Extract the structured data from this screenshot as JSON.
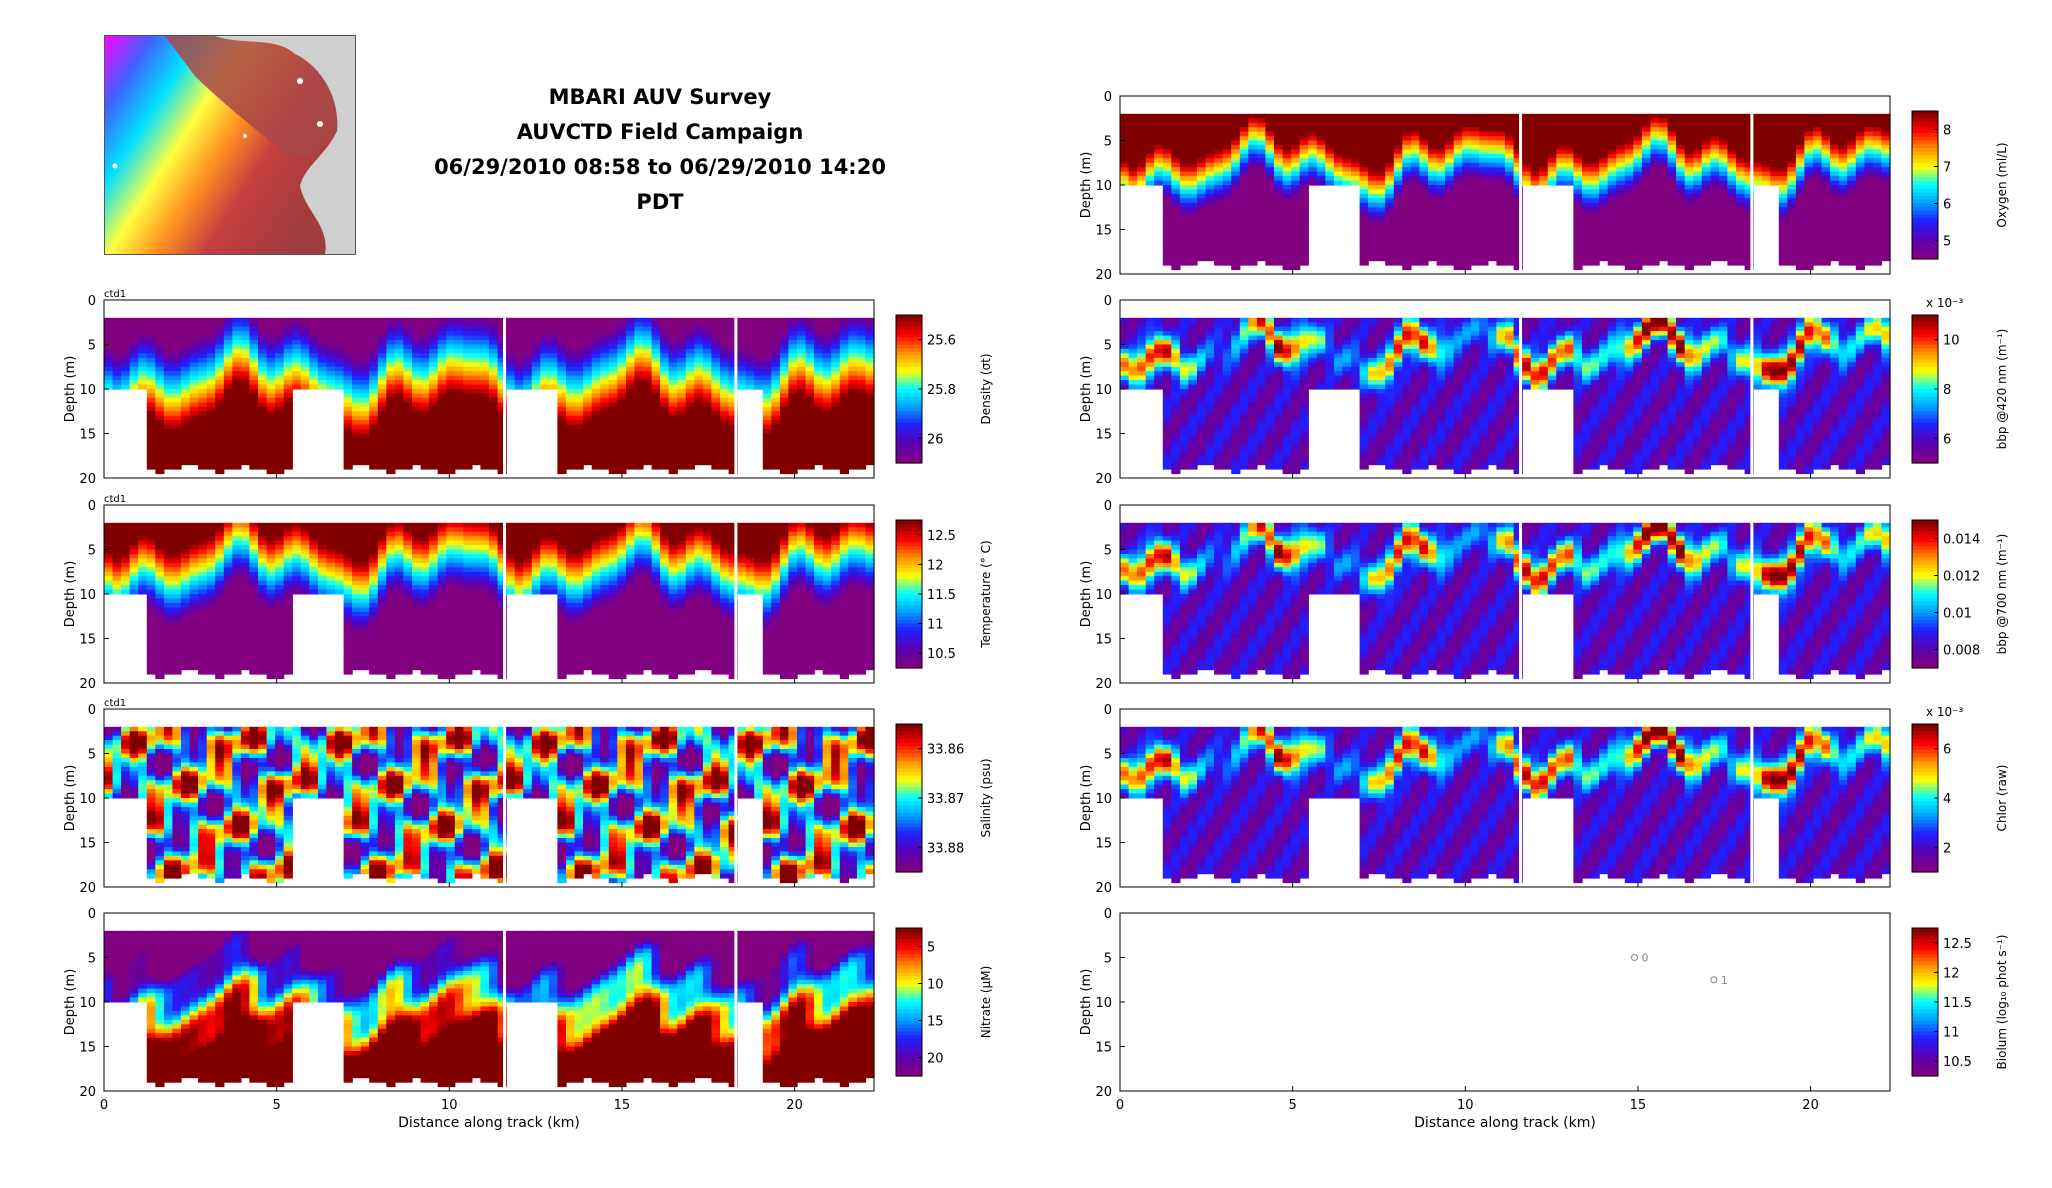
{
  "header": {
    "title_line1": "MBARI AUV Survey",
    "title_line2": "AUVCTD Field Campaign",
    "title_line3": "06/29/2010 08:58 to 06/29/2010 14:20 PDT"
  },
  "colors": {
    "colormap": [
      "#800080",
      "#5a00b4",
      "#2020ff",
      "#00a0ff",
      "#00ffff",
      "#ffff00",
      "#ff9000",
      "#ff0000",
      "#800000"
    ],
    "track": "#cccccc",
    "profile_points": "#ffffff",
    "map_water": "#c8c8c8",
    "map_land": "#a03c3c"
  },
  "chart_data": [
    {
      "id": "density",
      "type": "heatmap",
      "tag": "ctd1",
      "ylabel": "Depth (m)",
      "cbar_label": "Density (σt)",
      "cbar_ticks": [
        "25.6",
        "25.8",
        "26"
      ],
      "xlim": [
        0,
        22.3
      ],
      "ylim": [
        20,
        0
      ],
      "yticks": [
        "0",
        "5",
        "10",
        "15",
        "20"
      ],
      "xticks": [
        "0",
        "5",
        "10",
        "15",
        "20"
      ],
      "xlabel": ""
    },
    {
      "id": "temperature",
      "type": "heatmap",
      "tag": "ctd1",
      "ylabel": "Depth (m)",
      "cbar_label": "Temperature (° C)",
      "cbar_ticks": [
        "12.5",
        "12",
        "11.5",
        "11",
        "10.5"
      ],
      "xlim": [
        0,
        22.3
      ],
      "ylim": [
        20,
        0
      ],
      "yticks": [
        "0",
        "5",
        "10",
        "15",
        "20"
      ],
      "xticks": [
        "0",
        "5",
        "10",
        "15",
        "20"
      ],
      "xlabel": ""
    },
    {
      "id": "salinity",
      "type": "heatmap",
      "tag": "ctd1",
      "ylabel": "Depth (m)",
      "cbar_label": "Salinity (psu)",
      "cbar_ticks": [
        "33.86",
        "33.87",
        "33.88"
      ],
      "xlim": [
        0,
        22.3
      ],
      "ylim": [
        20,
        0
      ],
      "yticks": [
        "0",
        "5",
        "10",
        "15",
        "20"
      ],
      "xticks": [
        "0",
        "5",
        "10",
        "15",
        "20"
      ],
      "xlabel": ""
    },
    {
      "id": "nitrate",
      "type": "heatmap",
      "tag": "",
      "ylabel": "Depth (m)",
      "cbar_label": "Nitrate (μM)",
      "cbar_ticks": [
        "5",
        "10",
        "15",
        "20"
      ],
      "xlim": [
        0,
        22.3
      ],
      "ylim": [
        20,
        0
      ],
      "yticks": [
        "0",
        "5",
        "10",
        "15",
        "20"
      ],
      "xticks": [
        "0",
        "5",
        "10",
        "15",
        "20"
      ],
      "xlabel": "Distance along track (km)"
    },
    {
      "id": "oxygen",
      "type": "heatmap",
      "tag": "",
      "ylabel": "Depth (m)",
      "cbar_label": "Oxygen (ml/L)",
      "cbar_ticks": [
        "8",
        "7",
        "6",
        "5"
      ],
      "xlim": [
        0,
        22.3
      ],
      "ylim": [
        20,
        0
      ],
      "yticks": [
        "0",
        "5",
        "10",
        "15",
        "20"
      ],
      "xticks": [
        "0",
        "5",
        "10",
        "15",
        "20"
      ],
      "xlabel": ""
    },
    {
      "id": "bbp420",
      "type": "heatmap",
      "tag": "",
      "ylabel": "Depth (m)",
      "cbar_label": "bbp @420 nm (m⁻¹)",
      "cbar_exp": "x 10⁻³",
      "cbar_ticks": [
        "10",
        "8",
        "6"
      ],
      "xlim": [
        0,
        22.3
      ],
      "ylim": [
        20,
        0
      ],
      "yticks": [
        "0",
        "5",
        "10",
        "15",
        "20"
      ],
      "xticks": [
        "0",
        "5",
        "10",
        "15",
        "20"
      ],
      "xlabel": ""
    },
    {
      "id": "bbp700",
      "type": "heatmap",
      "tag": "",
      "ylabel": "Depth (m)",
      "cbar_label": "bbp @700 nm (m⁻¹)",
      "cbar_ticks": [
        "0.014",
        "0.012",
        "0.01",
        "0.008"
      ],
      "xlim": [
        0,
        22.3
      ],
      "ylim": [
        20,
        0
      ],
      "yticks": [
        "0",
        "5",
        "10",
        "15",
        "20"
      ],
      "xticks": [
        "0",
        "5",
        "10",
        "15",
        "20"
      ],
      "xlabel": ""
    },
    {
      "id": "chlor",
      "type": "heatmap",
      "tag": "",
      "ylabel": "Depth (m)",
      "cbar_label": "Chlor (raw)",
      "cbar_exp": "x 10⁻³",
      "cbar_ticks": [
        "6",
        "4",
        "2"
      ],
      "xlim": [
        0,
        22.3
      ],
      "ylim": [
        20,
        0
      ],
      "yticks": [
        "0",
        "5",
        "10",
        "15",
        "20"
      ],
      "xticks": [
        "0",
        "5",
        "10",
        "15",
        "20"
      ],
      "xlabel": ""
    },
    {
      "id": "biolum",
      "type": "scatter",
      "tag": "",
      "ylabel": "Depth (m)",
      "cbar_label": "Biolum (log₁₀ phot s⁻¹)",
      "cbar_ticks": [
        "12.5",
        "12",
        "11.5",
        "11",
        "10.5"
      ],
      "xlim": [
        0,
        22.3
      ],
      "ylim": [
        20,
        0
      ],
      "yticks": [
        "0",
        "5",
        "10",
        "15",
        "20"
      ],
      "xticks": [
        "0",
        "5",
        "10",
        "15",
        "20"
      ],
      "xlabel": "Distance along track (km)",
      "points": [
        {
          "x": 14.9,
          "y": 5,
          "label": "0"
        },
        {
          "x": 17.2,
          "y": 7.5,
          "label": "1"
        }
      ]
    }
  ]
}
